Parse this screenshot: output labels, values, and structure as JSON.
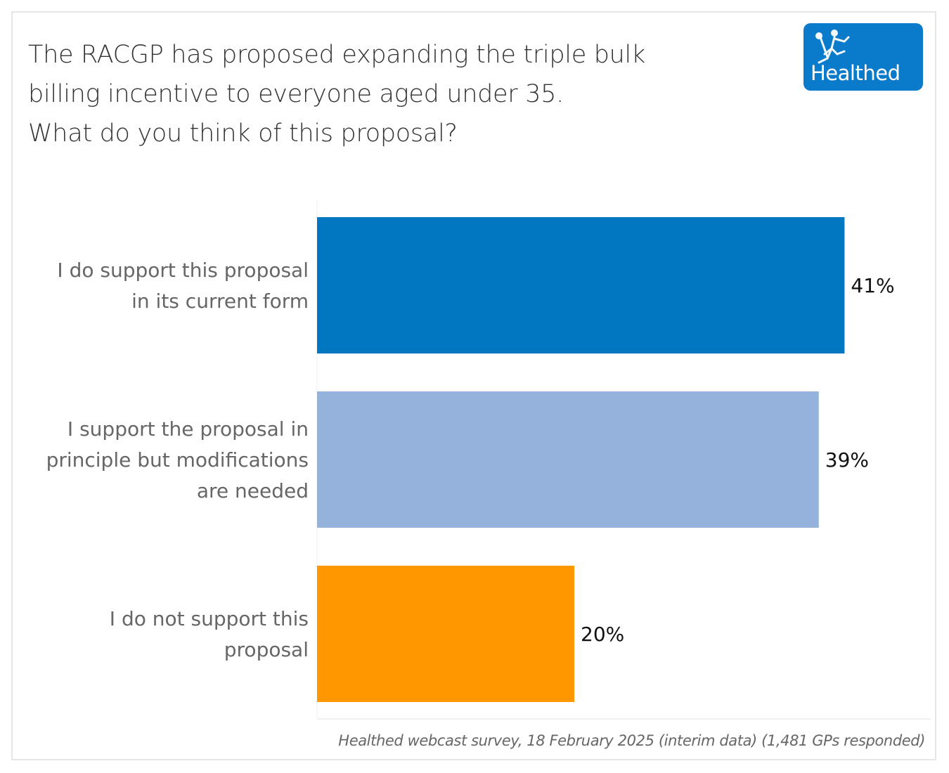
{
  "title_lines": [
    "The RACGP has proposed expanding the triple bulk",
    "billing incentive to everyone aged under 35.",
    "What do you think of this proposal?"
  ],
  "logo": {
    "text": "Healthed",
    "icon": "running-figure-icon",
    "color": "#0a7bcb"
  },
  "chart_data": {
    "type": "bar",
    "orientation": "horizontal",
    "title": "The RACGP has proposed expanding the triple bulk billing incentive to everyone aged under 35. What do you think of this proposal?",
    "categories": [
      [
        "I do support this proposal",
        "in its current form"
      ],
      [
        "I support the proposal in",
        "principle but modifications",
        "are needed"
      ],
      [
        "I do not support this",
        "proposal"
      ]
    ],
    "values": [
      41,
      39,
      20
    ],
    "value_labels": [
      "41%",
      "39%",
      "20%"
    ],
    "colors": [
      "#0077c0",
      "#95b2dd",
      "#ff9700"
    ],
    "unit": "%",
    "xlim": [
      0,
      47.7
    ],
    "grid": false,
    "legend": "none",
    "xlabel": "",
    "ylabel": ""
  },
  "source": "Healthed webcast survey, 18 February 2025 (interim data) (1,481 GPs responded)"
}
